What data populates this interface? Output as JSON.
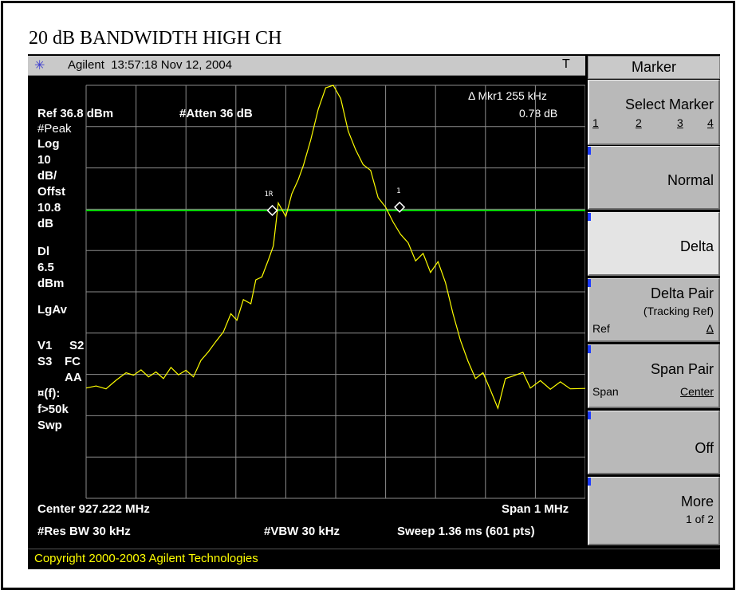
{
  "page_title": "20 dB BANDWIDTH HIGH CH",
  "status_bar": {
    "brand": "Agilent",
    "timestamp": "13:57:18  Nov 12, 2004",
    "trigger": "T"
  },
  "display": {
    "marker_readout_label": "Δ Mkr1  255 kHz",
    "marker_readout_value": "0.78 dB",
    "ref_level": "Ref 36.8 dBm",
    "attenuation": "#Atten 36 dB",
    "detector": "#Peak",
    "scale_type": "Log",
    "scale_value": "10",
    "scale_unit": "dB/",
    "offset_label": "Offst",
    "offset_value": "10.8",
    "offset_unit": "dB",
    "display_line_label": "Dl",
    "display_line_value": "6.5",
    "display_line_unit": "dBm",
    "averaging": "LgAv",
    "v1": "V1",
    "s2": "S2",
    "s3": "S3",
    "fc": "FC",
    "aa": "AA",
    "ff": "¤(f):",
    "f_cond": "f>50k",
    "swp": "Swp",
    "center": "Center 927.222 MHz",
    "span": "Span 1 MHz",
    "res_bw": "#Res BW 30 kHz",
    "vbw": "#VBW 30 kHz",
    "sweep": "Sweep 1.36 ms (601 pts)",
    "marker_ref_label": "1R",
    "marker_1_label": "1"
  },
  "softkeys": {
    "title": "Marker",
    "select_marker": "Select Marker",
    "marker_numbers": [
      "1",
      "2",
      "3",
      "4"
    ],
    "normal": "Normal",
    "delta": "Delta",
    "delta_pair": "Delta Pair",
    "tracking_ref": "(Tracking Ref)",
    "delta_pair_ref": "Ref",
    "delta_pair_delta": "Δ",
    "span_pair": "Span Pair",
    "span_pair_span": "Span",
    "span_pair_center": "Center",
    "off": "Off",
    "more": "More",
    "more_page": "1 of 2"
  },
  "copyright": "Copyright 2000-2003 Agilent Technologies",
  "colors": {
    "trace": "#ffff00",
    "display_line": "#00d000",
    "graticule": "#8c8c8c",
    "screen_bg": "#000000"
  },
  "chart_data": {
    "type": "line",
    "xlabel": "Center 927.222 MHz",
    "span": "Span 1 MHz",
    "x_range_khz": [
      -500,
      500
    ],
    "y_range_db": [
      -100,
      0
    ],
    "display_line_db": -30.3,
    "trace_points": [
      [
        -500,
        -73.3
      ],
      [
        -480,
        -72.8
      ],
      [
        -460,
        -73.5
      ],
      [
        -440,
        -71.4
      ],
      [
        -420,
        -69.6
      ],
      [
        -405,
        -70.2
      ],
      [
        -390,
        -68.9
      ],
      [
        -375,
        -70.6
      ],
      [
        -360,
        -69.4
      ],
      [
        -345,
        -71.0
      ],
      [
        -330,
        -68.3
      ],
      [
        -315,
        -70.1
      ],
      [
        -300,
        -69.0
      ],
      [
        -285,
        -70.6
      ],
      [
        -270,
        -66.6
      ],
      [
        -255,
        -64.5
      ],
      [
        -240,
        -62.0
      ],
      [
        -225,
        -59.7
      ],
      [
        -210,
        -55.3
      ],
      [
        -198,
        -56.9
      ],
      [
        -185,
        -51.9
      ],
      [
        -170,
        -52.9
      ],
      [
        -160,
        -47.1
      ],
      [
        -148,
        -46.4
      ],
      [
        -135,
        -42.3
      ],
      [
        -125,
        -38.9
      ],
      [
        -115,
        -28.5
      ],
      [
        -100,
        -31.8
      ],
      [
        -88,
        -26.3
      ],
      [
        -75,
        -22.8
      ],
      [
        -65,
        -19.5
      ],
      [
        -50,
        -13.2
      ],
      [
        -35,
        -5.8
      ],
      [
        -20,
        -0.6
      ],
      [
        -5,
        0.0
      ],
      [
        10,
        -3.2
      ],
      [
        25,
        -11.1
      ],
      [
        40,
        -15.6
      ],
      [
        55,
        -19.2
      ],
      [
        70,
        -20.6
      ],
      [
        85,
        -27.2
      ],
      [
        100,
        -29.5
      ],
      [
        115,
        -33.1
      ],
      [
        130,
        -36.1
      ],
      [
        145,
        -38.1
      ],
      [
        160,
        -42.5
      ],
      [
        175,
        -40.7
      ],
      [
        190,
        -45.3
      ],
      [
        205,
        -42.7
      ],
      [
        220,
        -47.8
      ],
      [
        235,
        -55.3
      ],
      [
        250,
        -61.8
      ],
      [
        265,
        -66.8
      ],
      [
        280,
        -71.0
      ],
      [
        295,
        -69.6
      ],
      [
        310,
        -73.8
      ],
      [
        325,
        -78.2
      ],
      [
        340,
        -71.0
      ],
      [
        355,
        -70.4
      ],
      [
        375,
        -69.5
      ],
      [
        390,
        -73.3
      ],
      [
        410,
        -71.5
      ],
      [
        430,
        -73.6
      ],
      [
        450,
        -71.8
      ],
      [
        470,
        -73.5
      ],
      [
        500,
        -73.4
      ]
    ],
    "markers": [
      {
        "label": "1R",
        "x_khz": -127,
        "y_db": -30.3
      },
      {
        "label": "1",
        "x_khz": 128,
        "y_db": -29.5
      }
    ]
  }
}
